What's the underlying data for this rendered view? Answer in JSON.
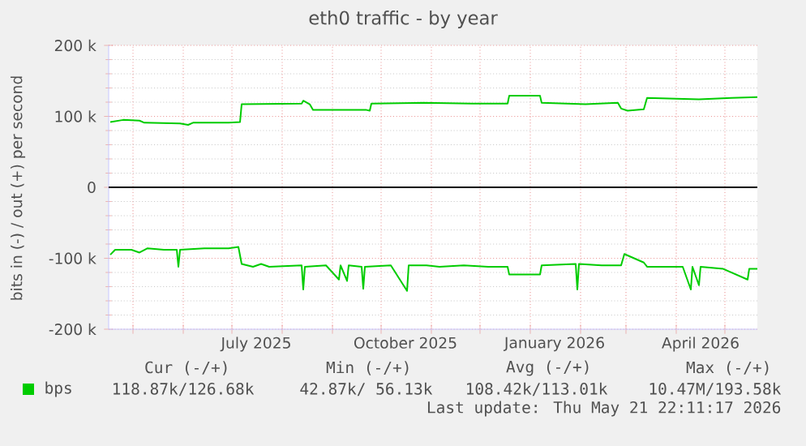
{
  "chart_data": {
    "type": "line",
    "title": "eth0 traffic - by year",
    "ylabel": "bits in (-) / out (+) per second",
    "xlim": [
      "2025-04-16",
      "2026-05-21"
    ],
    "ylim": [
      -200000,
      200000
    ],
    "xticks": [
      {
        "value": "2025-05-01",
        "label": null
      },
      {
        "value": "2025-06-01",
        "label": null
      },
      {
        "value": "2025-07-01",
        "label": null
      },
      {
        "value": "2025-08-01",
        "label": null
      },
      {
        "value": "2025-09-01",
        "label": null
      },
      {
        "value": "2025-10-01",
        "label": null
      },
      {
        "value": "2025-11-01",
        "label": null
      },
      {
        "value": "2025-12-01",
        "label": null
      },
      {
        "value": "2026-01-01",
        "label": null
      },
      {
        "value": "2026-02-01",
        "label": null
      },
      {
        "value": "2026-03-01",
        "label": null
      },
      {
        "value": "2026-04-01",
        "label": null
      },
      {
        "value": "2026-05-01",
        "label": null
      },
      {
        "value": "2025-07-16",
        "label": "July 2025"
      },
      {
        "value": "2025-10-16",
        "label": "October 2025"
      },
      {
        "value": "2026-01-16",
        "label": "January 2026"
      },
      {
        "value": "2026-04-16",
        "label": "April 2026"
      }
    ],
    "yticks": [
      {
        "value": -200000,
        "label": "-200 k"
      },
      {
        "value": -100000,
        "label": "-100 k"
      },
      {
        "value": 0,
        "label": "0"
      },
      {
        "value": 100000,
        "label": "100 k"
      },
      {
        "value": 200000,
        "label": "200 k"
      }
    ],
    "grid": true,
    "legend": "bottom",
    "ref_lines": [
      {
        "axis": "y",
        "value": 0,
        "color": "#000000"
      }
    ],
    "series": [
      {
        "name": "bps",
        "color": "#00cc00",
        "x": [
          "2025-04-17",
          "2025-04-25",
          "2025-05-05",
          "2025-05-08",
          "2025-05-30",
          "2025-06-04",
          "2025-06-07",
          "2025-06-29",
          "2025-07-06",
          "2025-07-07",
          "2025-08-13",
          "2025-08-14",
          "2025-08-18",
          "2025-08-20",
          "2025-09-22",
          "2025-09-24",
          "2025-09-25",
          "2025-10-27",
          "2025-11-26",
          "2025-12-18",
          "2025-12-19",
          "2026-01-07",
          "2026-01-08",
          "2026-02-04",
          "2026-02-24",
          "2026-02-26",
          "2026-03-02",
          "2026-03-12",
          "2026-03-14",
          "2026-04-15",
          "2026-05-05",
          "2026-05-21"
        ],
        "values": [
          92000,
          95000,
          94000,
          91000,
          90000,
          88000,
          91000,
          91000,
          92000,
          117000,
          118000,
          122000,
          117000,
          109000,
          109000,
          108000,
          118000,
          119000,
          118000,
          118000,
          129000,
          129000,
          119000,
          117000,
          119000,
          111000,
          108000,
          110000,
          126000,
          124000,
          126000,
          127000
        ]
      },
      {
        "color": "#00cc00",
        "x": [
          "2025-04-17",
          "2025-04-20",
          "2025-04-30",
          "2025-05-05",
          "2025-05-10",
          "2025-05-20",
          "2025-05-28",
          "2025-05-29",
          "2025-05-30",
          "2025-06-14",
          "2025-06-29",
          "2025-07-05",
          "2025-07-07",
          "2025-07-14",
          "2025-07-19",
          "2025-07-24",
          "2025-08-13",
          "2025-08-14",
          "2025-08-15",
          "2025-08-28",
          "2025-09-05",
          "2025-09-06",
          "2025-09-10",
          "2025-09-11",
          "2025-09-19",
          "2025-09-20",
          "2025-09-21",
          "2025-10-07",
          "2025-10-17",
          "2025-10-18",
          "2025-10-29",
          "2025-11-06",
          "2025-11-21",
          "2025-12-06",
          "2025-12-18",
          "2025-12-19",
          "2026-01-07",
          "2026-01-08",
          "2026-01-29",
          "2026-01-30",
          "2026-01-31",
          "2026-02-14",
          "2026-02-26",
          "2026-02-28",
          "2026-03-06",
          "2026-03-12",
          "2026-03-14",
          "2026-04-05",
          "2026-04-10",
          "2026-04-11",
          "2026-04-15",
          "2026-04-16",
          "2026-04-30",
          "2026-05-15",
          "2026-05-16",
          "2026-05-21"
        ],
        "values": [
          -95000,
          -88000,
          -88000,
          -92000,
          -86000,
          -88000,
          -88000,
          -112000,
          -88000,
          -86000,
          -86000,
          -84000,
          -108000,
          -112000,
          -108000,
          -112000,
          -110000,
          -144000,
          -112000,
          -110000,
          -130000,
          -110000,
          -132000,
          -110000,
          -112000,
          -143000,
          -112000,
          -110000,
          -146000,
          -110000,
          -110000,
          -112000,
          -110000,
          -112000,
          -112000,
          -123000,
          -123000,
          -110000,
          -108000,
          -144000,
          -108000,
          -110000,
          -110000,
          -94000,
          -100000,
          -106000,
          -112000,
          -112000,
          -144000,
          -112000,
          -138000,
          -112000,
          -115000,
          -130000,
          -115000,
          -115000
        ]
      }
    ],
    "annotations": [
      "Cur (-/+)",
      "Min (-/+)",
      "Avg (-/+)",
      "Max (-/+)",
      "118.87k/126.68k",
      "42.87k/ 56.13k",
      "108.42k/113.01k",
      "10.47M/193.58k",
      "Last update: Thu May 21 22:11:17 2026"
    ]
  }
}
